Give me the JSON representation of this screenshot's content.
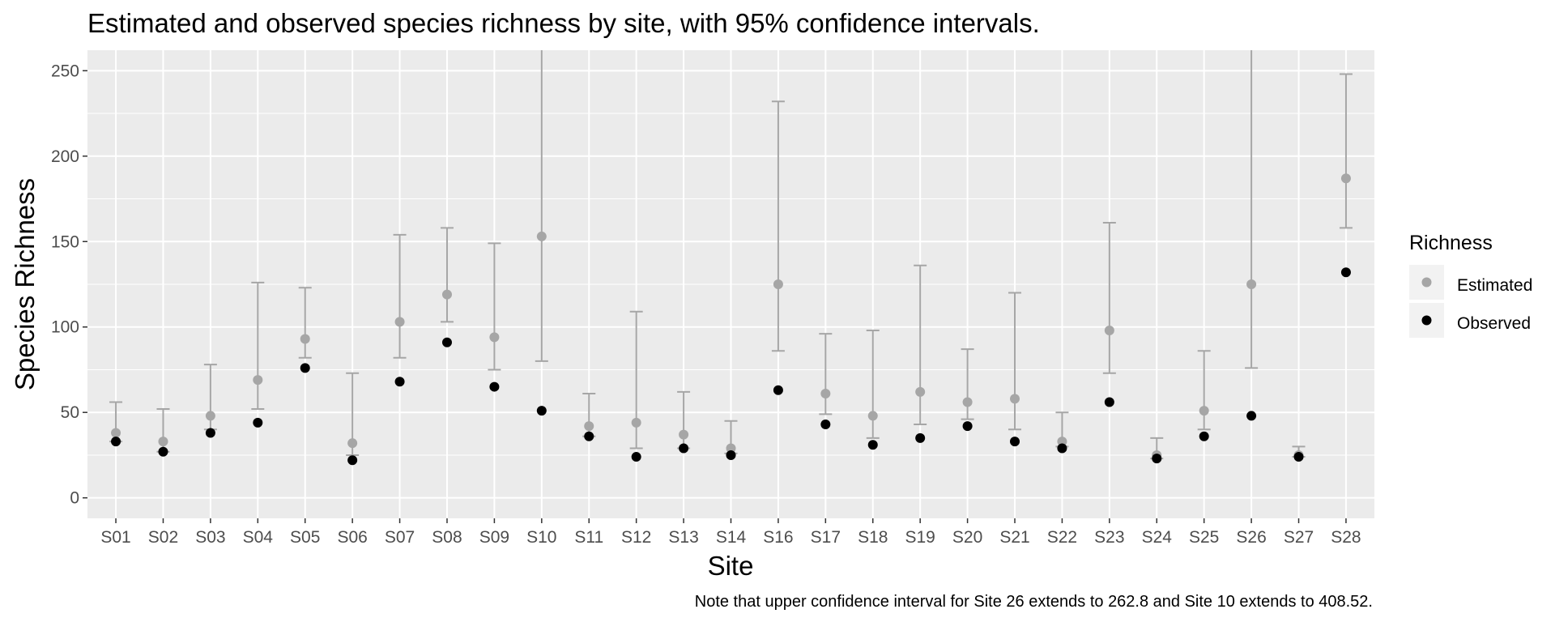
{
  "chart_data": {
    "type": "scatter",
    "title": "Estimated and observed species richness by site, with 95% confidence intervals.",
    "xlabel": "Site",
    "ylabel": "Species Richness",
    "note": "Note that upper confidence interval for Site 26 extends to 262.8 and Site 10 extends to 408.52.",
    "ylim": [
      -12,
      262
    ],
    "yticks": [
      0,
      50,
      100,
      150,
      200,
      250
    ],
    "grid": true,
    "legend": {
      "title": "Richness",
      "position": "right",
      "entries": [
        {
          "label": "Estimated",
          "color": "#a6a6a6"
        },
        {
          "label": "Observed",
          "color": "#000000"
        }
      ]
    },
    "categories": [
      "S01",
      "S02",
      "S03",
      "S04",
      "S05",
      "S06",
      "S07",
      "S08",
      "S09",
      "S10",
      "S11",
      "S12",
      "S13",
      "S14",
      "S16",
      "S17",
      "S18",
      "S19",
      "S20",
      "S21",
      "S22",
      "S23",
      "S24",
      "S25",
      "S26",
      "S27",
      "S28"
    ],
    "series": [
      {
        "name": "Estimated",
        "color": "#a6a6a6",
        "values": [
          38,
          33,
          48,
          69,
          93,
          32,
          103,
          119,
          94,
          153,
          42,
          44,
          37,
          29,
          125,
          61,
          48,
          62,
          56,
          58,
          33,
          98,
          25,
          51,
          125,
          25,
          187
        ],
        "ci_lower": [
          33,
          27,
          40,
          52,
          82,
          25,
          82,
          103,
          75,
          80,
          36,
          29,
          29,
          26,
          86,
          49,
          35,
          43,
          46,
          40,
          30,
          73,
          23,
          40,
          76,
          24,
          158
        ],
        "ci_upper": [
          56,
          52,
          78,
          126,
          123,
          73,
          154,
          158,
          149,
          408.52,
          61,
          109,
          62,
          45,
          232,
          96,
          98,
          136,
          87,
          120,
          50,
          161,
          35,
          86,
          262.8,
          30,
          248
        ]
      },
      {
        "name": "Observed",
        "color": "#000000",
        "values": [
          33,
          27,
          38,
          44,
          76,
          22,
          68,
          91,
          65,
          51,
          36,
          24,
          29,
          25,
          63,
          43,
          31,
          35,
          42,
          33,
          29,
          56,
          23,
          36,
          48,
          24,
          132
        ]
      }
    ]
  }
}
